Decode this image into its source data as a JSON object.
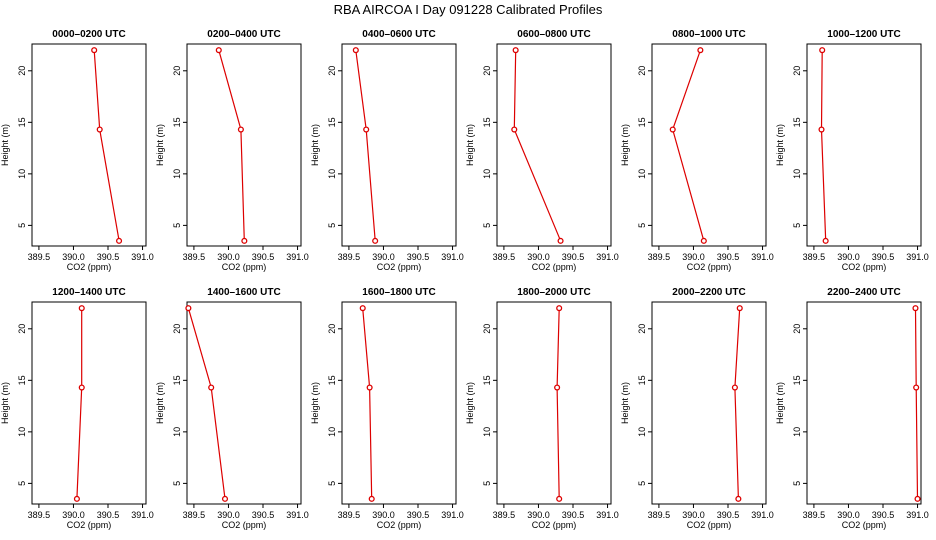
{
  "title": "RBA AIRCOA I  Day 091228  Calibrated Profiles",
  "colors": {
    "series": "#dd0000",
    "axis": "#000000",
    "background": "#ffffff"
  },
  "chart_data": {
    "type": "line",
    "marker": "open-circle",
    "xlabel": "CO2 (ppm)",
    "ylabel": "Height (m)",
    "xlim": [
      389.4,
      391.05
    ],
    "xticks": [
      "389.5",
      "390.0",
      "390.5",
      "391.0"
    ],
    "ylim": [
      3,
      22.6
    ],
    "yticks": [
      "5",
      "10",
      "15",
      "20"
    ],
    "heights": [
      22,
      14.3,
      3.5
    ],
    "panels": [
      {
        "title": "0000–0200 UTC",
        "values": [
          390.3,
          390.38,
          390.66
        ]
      },
      {
        "title": "0200–0400 UTC",
        "values": [
          389.86,
          390.18,
          390.23
        ]
      },
      {
        "title": "0400–0600 UTC",
        "values": [
          389.6,
          389.75,
          389.88
        ]
      },
      {
        "title": "0600–0800 UTC",
        "values": [
          389.67,
          389.65,
          390.32
        ]
      },
      {
        "title": "0800–1000 UTC",
        "values": [
          390.1,
          389.7,
          390.15
        ]
      },
      {
        "title": "1000–1200 UTC",
        "values": [
          389.62,
          389.61,
          389.67
        ]
      },
      {
        "title": "1200–1400 UTC",
        "values": [
          390.12,
          390.12,
          390.05
        ]
      },
      {
        "title": "1400–1600 UTC",
        "values": [
          389.42,
          389.75,
          389.95
        ]
      },
      {
        "title": "1600–1800 UTC",
        "values": [
          389.7,
          389.8,
          389.83
        ]
      },
      {
        "title": "1800–2000 UTC",
        "values": [
          390.3,
          390.27,
          390.3
        ]
      },
      {
        "title": "2000–2200 UTC",
        "values": [
          390.67,
          390.6,
          390.65
        ]
      },
      {
        "title": "2200–2400 UTC",
        "values": [
          390.97,
          390.98,
          391.0
        ]
      }
    ]
  }
}
